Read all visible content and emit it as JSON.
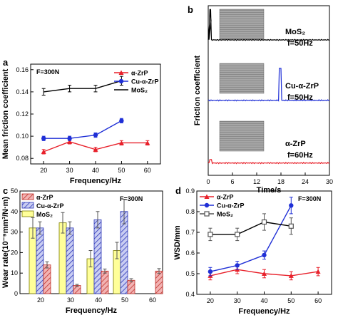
{
  "chart_data": [
    {
      "panel": "a",
      "type": "line",
      "annotation": "F=300N",
      "xlabel": "Frequency/Hz",
      "ylabel": "Mean friction coefficient",
      "xticks": [
        20,
        30,
        40,
        50,
        60
      ],
      "yticks": [
        "0.08",
        "0.10",
        "0.12",
        "0.14",
        "0.16"
      ],
      "xlim": [
        15,
        65
      ],
      "ylim": [
        0.075,
        0.165
      ],
      "legend_position": "top-right",
      "series": [
        {
          "name": "α-ZrP",
          "color": "#e8202a",
          "marker": "triangle",
          "x": [
            20,
            30,
            40,
            50,
            60
          ],
          "y": [
            0.086,
            0.095,
            0.088,
            0.094,
            0.094
          ],
          "err": [
            0.002,
            0.002,
            0.002,
            0.002,
            0.002
          ]
        },
        {
          "name": "Cu-α-ZrP",
          "color": "#1f2fd6",
          "marker": "circle",
          "x": [
            20,
            30,
            40,
            50
          ],
          "y": [
            0.098,
            0.098,
            0.101,
            0.114
          ],
          "err": [
            0.002,
            0.002,
            0.002,
            0.002
          ]
        },
        {
          "name": "MoS₂",
          "color": "#000000",
          "marker": "none",
          "x": [
            20,
            30,
            40,
            50
          ],
          "y": [
            0.14,
            0.143,
            0.143,
            0.15
          ],
          "err": [
            0.003,
            0.003,
            0.003,
            0.004
          ]
        }
      ]
    },
    {
      "panel": "b",
      "type": "line",
      "xlabel": "Time/s",
      "ylabel": "Friction coefficient",
      "xticks": [
        0,
        6,
        12,
        18,
        24,
        30
      ],
      "xlim": [
        0,
        30
      ],
      "traces": [
        {
          "name": "MoS₂",
          "condition": "f=50Hz",
          "color": "#000000",
          "baseline": 0.15,
          "spike_t": 0.5,
          "spike": 0.55
        },
        {
          "name": "Cu-α-ZrP",
          "condition": "f=50Hz",
          "color": "#1f2fd6",
          "baseline": 0.12,
          "spike_t": 17.8,
          "spike": 0.5
        },
        {
          "name": "α-ZrP",
          "condition": "f=60Hz",
          "color": "#e8202a",
          "baseline": 0.09,
          "spike_t": 0.6,
          "spike": 0.13
        }
      ]
    },
    {
      "panel": "c",
      "type": "bar",
      "annotation": "F=300N",
      "xlabel": "Frequency/Hz",
      "ylabel": "Wear rate(10⁻⁹mm³/N·m)",
      "categories": [
        "20",
        "30",
        "40",
        "50",
        "60"
      ],
      "yticks": [
        0,
        10,
        20,
        30,
        40,
        50
      ],
      "ylim": [
        0,
        50
      ],
      "legend_position": "top-left",
      "series": [
        {
          "name": "α-ZrP",
          "color": "#f2b3b3",
          "hatch": "#c0302a",
          "values": [
            14,
            4,
            11,
            6.5,
            11
          ],
          "err": [
            1.5,
            0.5,
            1,
            0.8,
            1.2
          ]
        },
        {
          "name": "Cu-α-ZrP",
          "color": "#c9cdf2",
          "hatch": "#2a35b8",
          "values": [
            32,
            32,
            36,
            40,
            null
          ],
          "err": [
            3,
            3,
            4,
            6,
            null
          ]
        },
        {
          "name": "MoS₂",
          "color": "#ffff99",
          "hatch": null,
          "values": [
            32,
            34.5,
            17,
            21,
            null
          ],
          "err": [
            5,
            5,
            4,
            4,
            null
          ]
        }
      ]
    },
    {
      "panel": "d",
      "type": "line",
      "annotation": "F=300N",
      "xlabel": "Frequency/Hz",
      "ylabel": "WSD/mm",
      "xticks": [
        20,
        30,
        40,
        50,
        60
      ],
      "yticks": [
        "0.4",
        "0.5",
        "0.6",
        "0.7",
        "0.8",
        "0.9"
      ],
      "xlim": [
        15,
        65
      ],
      "ylim": [
        0.4,
        0.9
      ],
      "legend_position": "top-left",
      "series": [
        {
          "name": "α-ZrP",
          "color": "#e8202a",
          "marker": "triangle",
          "x": [
            20,
            30,
            40,
            50,
            60
          ],
          "y": [
            0.49,
            0.52,
            0.5,
            0.49,
            0.51
          ],
          "err": [
            0.02,
            0.02,
            0.02,
            0.02,
            0.02
          ]
        },
        {
          "name": "Cu-α-ZrP",
          "color": "#1f2fd6",
          "marker": "circle",
          "x": [
            20,
            30,
            40,
            50
          ],
          "y": [
            0.51,
            0.54,
            0.59,
            0.83
          ],
          "err": [
            0.02,
            0.02,
            0.02,
            0.04
          ]
        },
        {
          "name": "MoS₂",
          "color": "#555555",
          "marker": "square-open",
          "x": [
            20,
            30,
            40,
            50
          ],
          "y": [
            0.69,
            0.69,
            0.75,
            0.73
          ],
          "err": [
            0.03,
            0.03,
            0.04,
            0.04
          ]
        }
      ]
    }
  ]
}
